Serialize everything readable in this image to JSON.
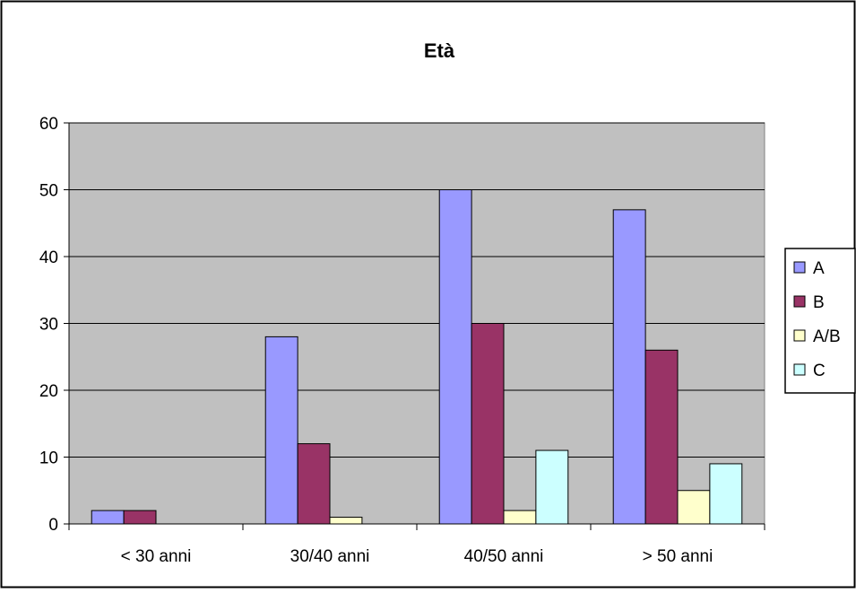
{
  "chart_data": {
    "type": "bar",
    "title": "Età",
    "xlabel": "",
    "ylabel": "",
    "categories": [
      "< 30 anni",
      "30/40 anni",
      "40/50 anni",
      "> 50 anni"
    ],
    "ylim": [
      0,
      60
    ],
    "yticks": [
      0,
      10,
      20,
      30,
      40,
      50,
      60
    ],
    "grid": true,
    "legend_position": "right",
    "plot_background": "#c0c0c0",
    "series": [
      {
        "name": "A",
        "color": "#9999ff",
        "values": [
          2,
          28,
          50,
          47
        ]
      },
      {
        "name": "B",
        "color": "#993366",
        "values": [
          2,
          12,
          30,
          26
        ]
      },
      {
        "name": "A/B",
        "color": "#ffffcc",
        "values": [
          0,
          1,
          2,
          5
        ]
      },
      {
        "name": "C",
        "color": "#ccffff",
        "values": [
          0,
          0,
          11,
          9
        ]
      }
    ]
  }
}
